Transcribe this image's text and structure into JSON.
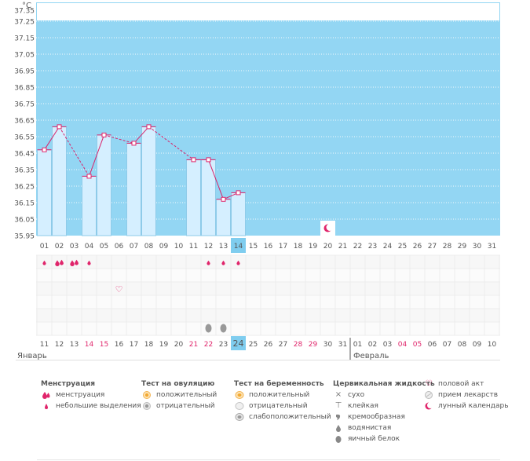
{
  "colors": {
    "chart_bg": "#93d6f3",
    "bar_fill": "#d5efff",
    "bar_stroke": "#8ecbe9",
    "line": "#d9236b",
    "marker": "#e0256b",
    "grid_row_odd": "#f7f7f7",
    "grid_row_even": "#fbfbfb",
    "today_cell": "#7fcdef",
    "weekend_text": "#e0256b",
    "normal_text": "#555555"
  },
  "chart_data": {
    "type": "bar",
    "ylabel": "°C",
    "ylim": [
      35.95,
      37.35
    ],
    "yticks": [
      "37.35",
      "37.25",
      "37.15",
      "37.05",
      "36.95",
      "36.85",
      "36.75",
      "36.65",
      "36.55",
      "36.45",
      "36.35",
      "36.25",
      "36.15",
      "36.05",
      "35.95"
    ],
    "cycle_days": [
      "01",
      "02",
      "03",
      "04",
      "05",
      "06",
      "07",
      "08",
      "09",
      "10",
      "11",
      "12",
      "13",
      "14",
      "15",
      "16",
      "17",
      "18",
      "19",
      "20",
      "21",
      "22",
      "23",
      "24",
      "25",
      "26",
      "27",
      "28",
      "29",
      "30",
      "31"
    ],
    "values": [
      36.47,
      36.61,
      null,
      36.31,
      36.56,
      null,
      36.51,
      36.61,
      null,
      null,
      36.41,
      36.41,
      36.17,
      36.21,
      null,
      null,
      null,
      null,
      null,
      null,
      null,
      null,
      null,
      null,
      null,
      null,
      null,
      null,
      null,
      null,
      null
    ],
    "today_index": 13,
    "moon_index": 19
  },
  "calendar": {
    "dates": [
      "11",
      "12",
      "13",
      "14",
      "15",
      "16",
      "17",
      "18",
      "19",
      "20",
      "21",
      "22",
      "23",
      "24",
      "25",
      "26",
      "27",
      "28",
      "29",
      "30",
      "31",
      "01",
      "02",
      "03",
      "04",
      "05",
      "06",
      "07",
      "08",
      "09",
      "10"
    ],
    "weekend": [
      false,
      false,
      false,
      true,
      true,
      false,
      false,
      false,
      false,
      false,
      true,
      true,
      false,
      false,
      false,
      false,
      false,
      true,
      true,
      false,
      false,
      false,
      false,
      false,
      true,
      true,
      false,
      false,
      false,
      false,
      false
    ],
    "month_start": "Январь",
    "month_next": "Февраль",
    "month_break_index": 21
  },
  "marks": {
    "menstruation": [
      1,
      2,
      2,
      1,
      0,
      0,
      0,
      0,
      0,
      0,
      0,
      1,
      1,
      1,
      0,
      0,
      0,
      0,
      0,
      0,
      0,
      0,
      0,
      0,
      0,
      0,
      0,
      0,
      0,
      0,
      0
    ],
    "heart_day_index": 5,
    "ovulation_neg_indices": [
      11,
      12
    ]
  },
  "legend": {
    "menstruation": {
      "title": "Менструация",
      "items": [
        "менструация",
        "небольшие выделения"
      ]
    },
    "ovulation": {
      "title": "Тест на овуляцию",
      "items": [
        "положительный",
        "отрицательный"
      ]
    },
    "pregnancy": {
      "title": "Тест на беременность",
      "items": [
        "положительный",
        "отрицательный",
        "слабоположительный"
      ]
    },
    "cervical": {
      "title": "Цервикальная жидкость",
      "items": [
        "сухо",
        "клейкая",
        "кремообразная",
        "водянистая",
        "яичный белок"
      ]
    },
    "other": {
      "items": [
        "половой акт",
        "прием лекарств",
        "лунный календарь"
      ]
    }
  },
  "icons": {
    "menstruation": "drop-icon",
    "spotting": "small-drop-icon",
    "heart": "heart-icon",
    "moon": "moon-icon",
    "ovulation_positive": "orange-circle-icon",
    "ovulation_negative": "gray-circle-icon"
  }
}
